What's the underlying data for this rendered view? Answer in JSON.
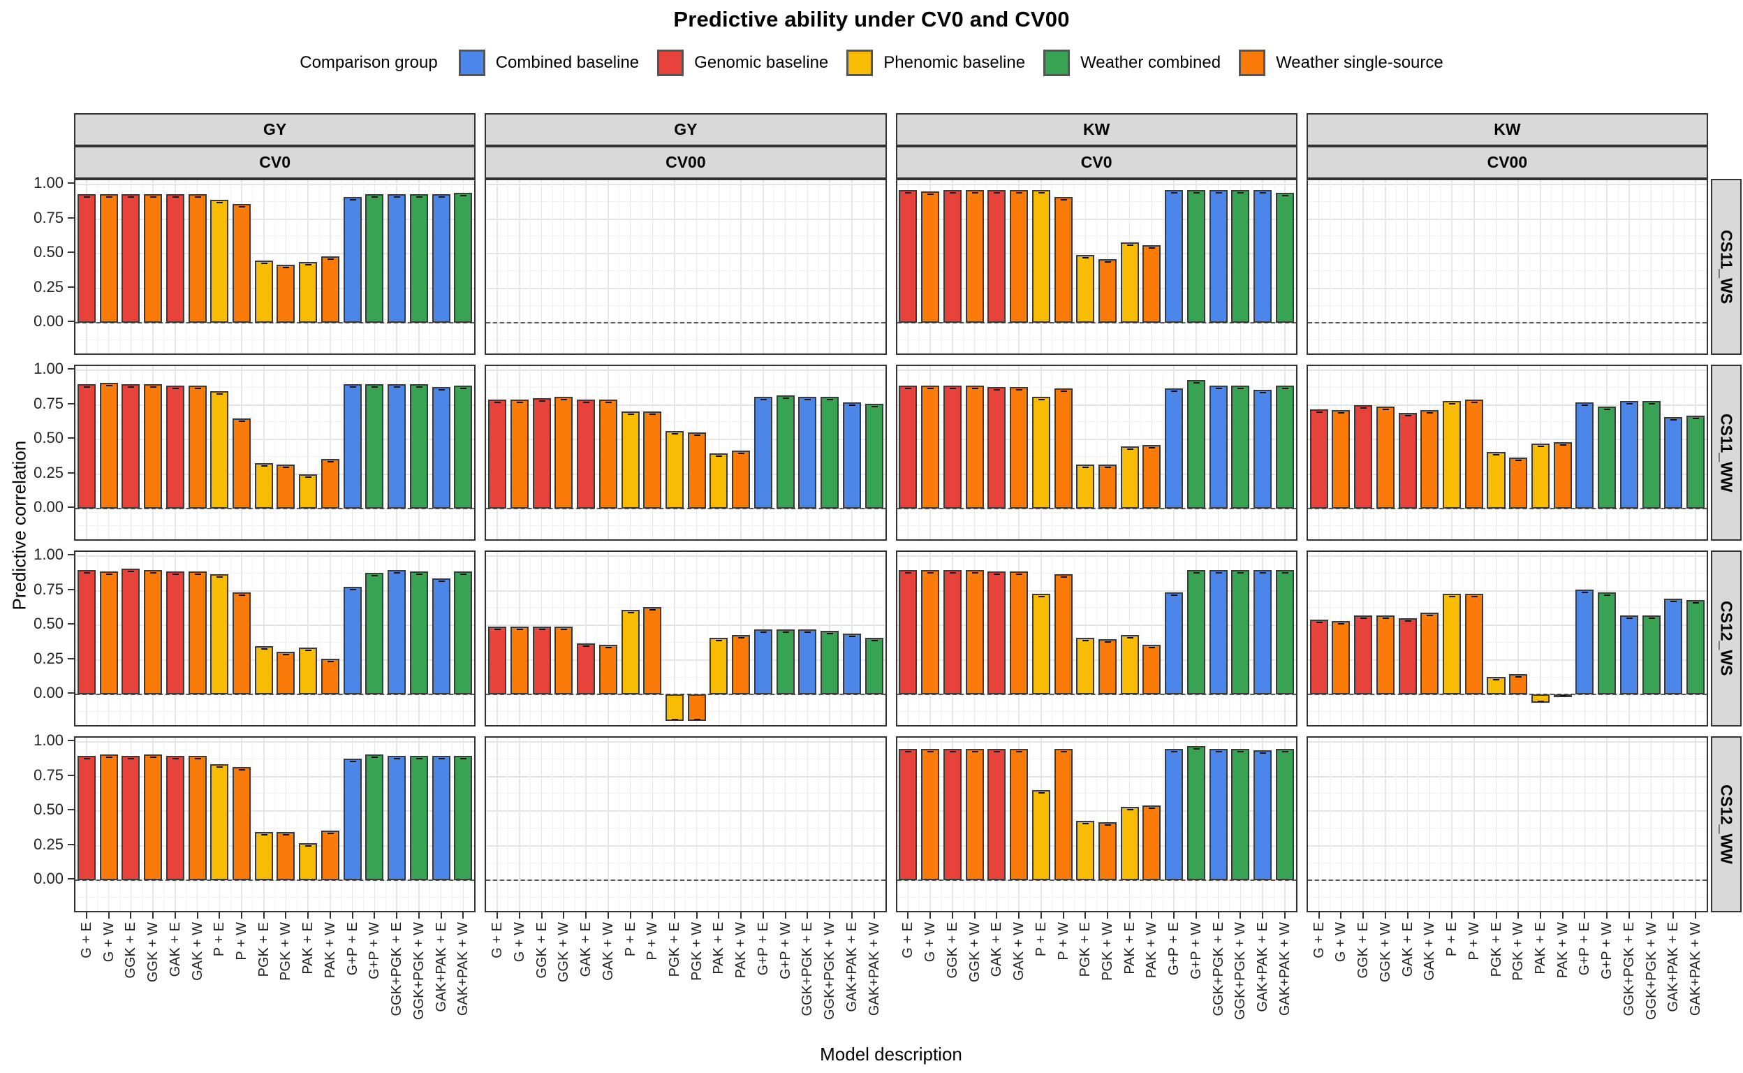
{
  "title": "Predictive ability under CV0 and CV00",
  "legend": {
    "title": "Comparison group",
    "items": [
      {
        "label": "Combined baseline",
        "group": "combined",
        "color": "#4C86E8"
      },
      {
        "label": "Genomic baseline",
        "group": "genomic",
        "color": "#E8433A"
      },
      {
        "label": "Phenomic baseline",
        "group": "phenomic",
        "color": "#F8BC05"
      },
      {
        "label": "Weather combined",
        "group": "weather_combined",
        "color": "#37A353"
      },
      {
        "label": "Weather single-source",
        "group": "weather_single",
        "color": "#FA7B0A"
      }
    ]
  },
  "axes": {
    "y_title": "Predictive correlation",
    "x_title": "Model description",
    "y_ticks": [
      "1.00",
      "0.75",
      "0.50",
      "0.25",
      "0.00"
    ]
  },
  "chart_data": {
    "type": "bar",
    "title": "Predictive ability under CV0 and CV00",
    "xlabel": "Model description",
    "ylabel": "Predictive correlation",
    "ylim": [
      -0.24,
      1.03
    ],
    "grid": true,
    "legend_position": "top",
    "categories": [
      "G + E",
      "G + W",
      "GGK + E",
      "GGK + W",
      "GAK + E",
      "GAK + W",
      "P + E",
      "P + W",
      "PGK + E",
      "PGK + W",
      "PAK + E",
      "PAK + W",
      "G+P + E",
      "G+P + W",
      "GGK+PGK + E",
      "GGK+PGK + W",
      "GAK+PAK + E",
      "GAK+PAK + W"
    ],
    "category_groups": [
      "genomic",
      "weather_single",
      "genomic",
      "weather_single",
      "genomic",
      "weather_single",
      "phenomic",
      "weather_single",
      "phenomic",
      "weather_single",
      "phenomic",
      "weather_single",
      "combined",
      "weather_combined",
      "combined",
      "weather_combined",
      "combined",
      "weather_combined"
    ],
    "group_colors": {
      "combined": "#4C86E8",
      "genomic": "#E8433A",
      "phenomic": "#F8BC05",
      "weather_combined": "#37A353",
      "weather_single": "#FA7B0A"
    },
    "col_facets": [
      {
        "trait": "GY",
        "cv": "CV0"
      },
      {
        "trait": "GY",
        "cv": "CV00"
      },
      {
        "trait": "KW",
        "cv": "CV0"
      },
      {
        "trait": "KW",
        "cv": "CV00"
      }
    ],
    "row_facets": [
      "CS11_WS",
      "CS11_WW",
      "CS12_WS",
      "CS12_WW"
    ],
    "panels": [
      [
        [
          0.93,
          0.93,
          0.93,
          0.93,
          0.93,
          0.93,
          0.89,
          0.86,
          0.45,
          0.42,
          0.44,
          0.48,
          0.91,
          0.93,
          0.93,
          0.93,
          0.93,
          0.94
        ],
        null,
        [
          0.96,
          0.95,
          0.96,
          0.96,
          0.96,
          0.96,
          0.96,
          0.91,
          0.49,
          0.46,
          0.58,
          0.56,
          0.96,
          0.96,
          0.96,
          0.96,
          0.96,
          0.94
        ],
        null
      ],
      [
        [
          0.9,
          0.91,
          0.9,
          0.9,
          0.89,
          0.89,
          0.85,
          0.65,
          0.33,
          0.32,
          0.25,
          0.36,
          0.9,
          0.9,
          0.9,
          0.9,
          0.88,
          0.89
        ],
        [
          0.79,
          0.79,
          0.8,
          0.81,
          0.79,
          0.79,
          0.7,
          0.7,
          0.56,
          0.55,
          0.4,
          0.42,
          0.81,
          0.82,
          0.81,
          0.81,
          0.77,
          0.76
        ],
        [
          0.89,
          0.89,
          0.89,
          0.89,
          0.88,
          0.88,
          0.81,
          0.87,
          0.32,
          0.32,
          0.45,
          0.46,
          0.87,
          0.93,
          0.89,
          0.89,
          0.86,
          0.89
        ],
        [
          0.72,
          0.71,
          0.75,
          0.74,
          0.69,
          0.71,
          0.78,
          0.79,
          0.41,
          0.37,
          0.47,
          0.48,
          0.77,
          0.74,
          0.78,
          0.78,
          0.66,
          0.67
        ]
      ],
      [
        [
          0.9,
          0.89,
          0.91,
          0.9,
          0.89,
          0.89,
          0.87,
          0.74,
          0.35,
          0.31,
          0.34,
          0.26,
          0.78,
          0.88,
          0.9,
          0.89,
          0.84,
          0.89
        ],
        [
          0.49,
          0.49,
          0.49,
          0.49,
          0.37,
          0.36,
          0.61,
          0.63,
          -0.19,
          -0.19,
          0.41,
          0.43,
          0.47,
          0.47,
          0.47,
          0.46,
          0.44,
          0.41
        ],
        [
          0.9,
          0.9,
          0.9,
          0.9,
          0.89,
          0.89,
          0.73,
          0.87,
          0.41,
          0.4,
          0.43,
          0.36,
          0.74,
          0.9,
          0.9,
          0.9,
          0.9,
          0.9
        ],
        [
          0.54,
          0.53,
          0.57,
          0.57,
          0.55,
          0.59,
          0.73,
          0.73,
          0.13,
          0.15,
          -0.06,
          -0.02,
          0.76,
          0.74,
          0.57,
          0.57,
          0.69,
          0.68
        ]
      ],
      [
        [
          0.9,
          0.91,
          0.9,
          0.91,
          0.9,
          0.9,
          0.84,
          0.82,
          0.35,
          0.35,
          0.27,
          0.36,
          0.88,
          0.91,
          0.9,
          0.9,
          0.9,
          0.9
        ],
        null,
        [
          0.95,
          0.95,
          0.95,
          0.95,
          0.95,
          0.95,
          0.65,
          0.95,
          0.43,
          0.42,
          0.53,
          0.54,
          0.95,
          0.97,
          0.95,
          0.95,
          0.94,
          0.95
        ],
        null
      ]
    ]
  }
}
